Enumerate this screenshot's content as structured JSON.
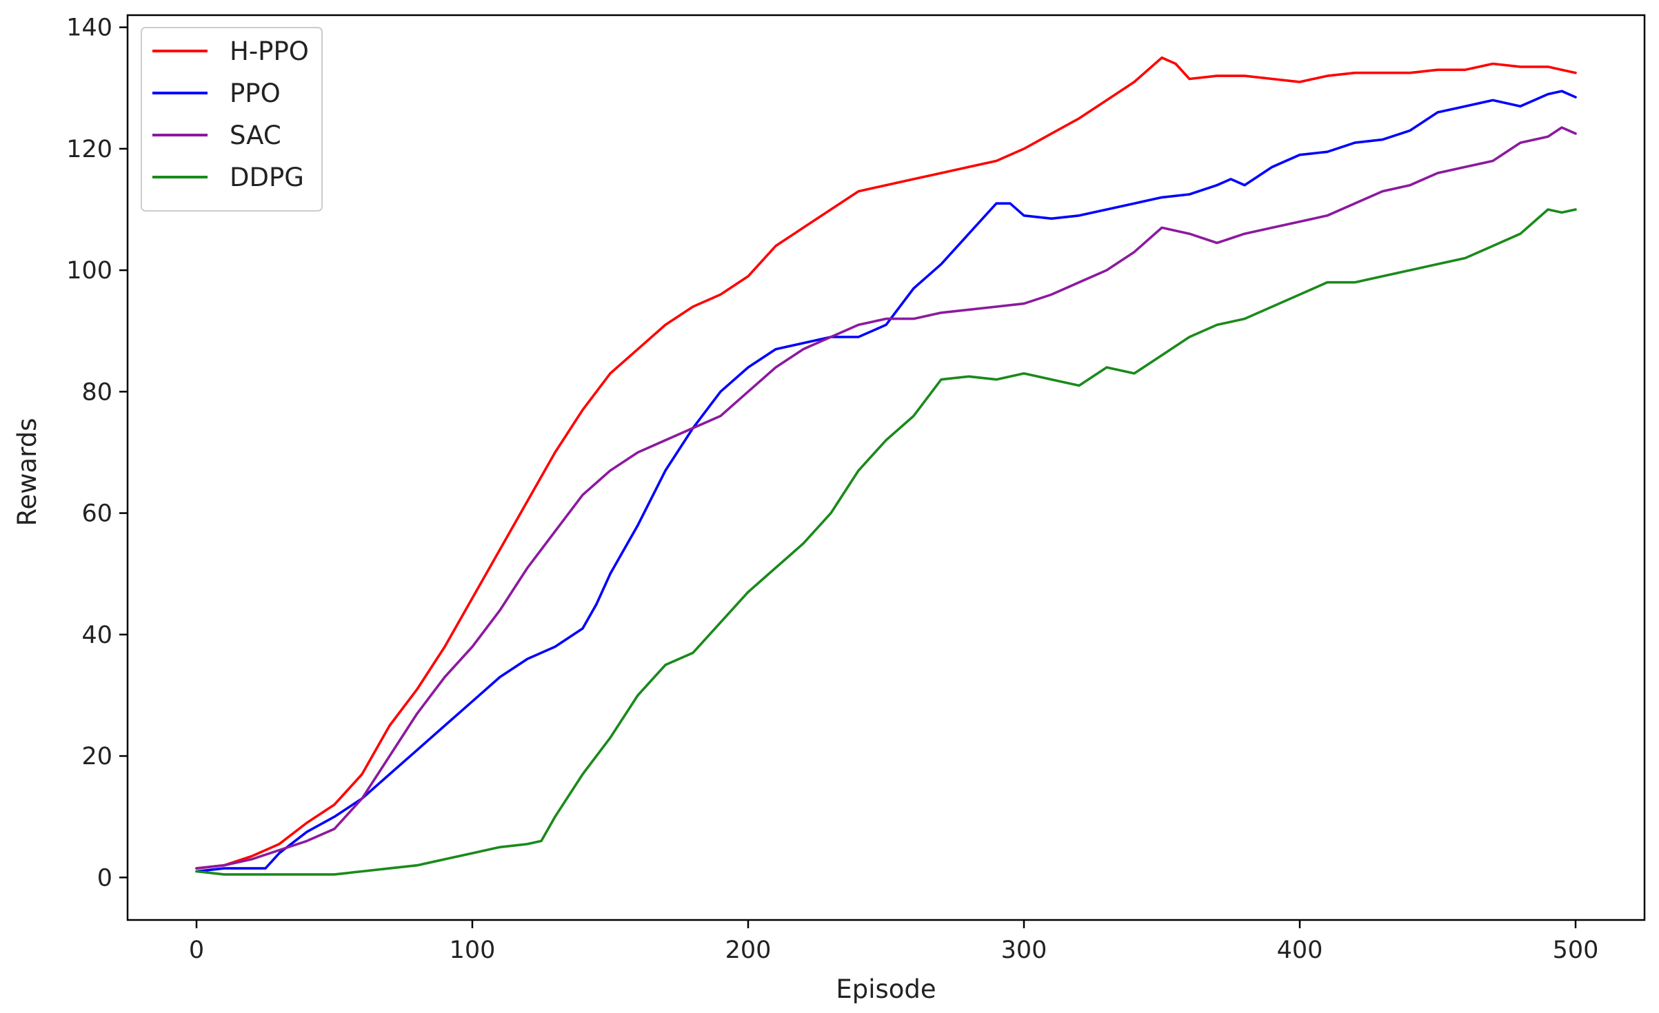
{
  "chart_data": {
    "type": "line",
    "title": "",
    "xlabel": "Episode",
    "ylabel": "Rewards",
    "xlim": [
      -25,
      525
    ],
    "ylim": [
      -7,
      142
    ],
    "xticks": [
      0,
      100,
      200,
      300,
      400,
      500
    ],
    "yticks": [
      0,
      20,
      40,
      60,
      80,
      100,
      120,
      140
    ],
    "grid": false,
    "legend_position": "top-left",
    "series": [
      {
        "name": "H-PPO",
        "color": "#ff0000",
        "x": [
          0,
          10,
          20,
          30,
          40,
          50,
          60,
          70,
          80,
          90,
          100,
          110,
          120,
          130,
          140,
          150,
          160,
          170,
          180,
          190,
          200,
          210,
          220,
          230,
          240,
          250,
          260,
          270,
          280,
          290,
          300,
          310,
          320,
          330,
          340,
          350,
          355,
          360,
          370,
          380,
          390,
          400,
          410,
          420,
          430,
          440,
          450,
          460,
          470,
          480,
          490,
          500
        ],
        "y": [
          1.5,
          2,
          3.5,
          5.5,
          9,
          12,
          17,
          25,
          31,
          38,
          46,
          54,
          62,
          70,
          77,
          83,
          87,
          91,
          94,
          96,
          99,
          104,
          107,
          110,
          113,
          114,
          115,
          116,
          117,
          118,
          120,
          122.5,
          125,
          128,
          131,
          135,
          134,
          131.5,
          132,
          132,
          131.5,
          131,
          132,
          132.5,
          132.5,
          132.5,
          133,
          133,
          134,
          133.5,
          133.5,
          132.5
        ]
      },
      {
        "name": "PPO",
        "color": "#0000ff",
        "x": [
          0,
          10,
          20,
          25,
          30,
          40,
          50,
          60,
          70,
          80,
          90,
          100,
          110,
          120,
          130,
          140,
          145,
          150,
          160,
          170,
          180,
          190,
          200,
          210,
          220,
          230,
          240,
          250,
          260,
          270,
          280,
          290,
          295,
          300,
          310,
          320,
          330,
          340,
          350,
          360,
          370,
          375,
          380,
          390,
          400,
          410,
          420,
          430,
          440,
          450,
          460,
          470,
          480,
          490,
          495,
          500
        ],
        "y": [
          1,
          1.5,
          1.5,
          1.5,
          4,
          7.5,
          10,
          13,
          17,
          21,
          25,
          29,
          33,
          36,
          38,
          41,
          45,
          50,
          58,
          67,
          74,
          80,
          84,
          87,
          88,
          89,
          89,
          91,
          97,
          101,
          106,
          111,
          111,
          109,
          108.5,
          109,
          110,
          111,
          112,
          112.5,
          114,
          115,
          114,
          117,
          119,
          119.5,
          121,
          121.5,
          123,
          126,
          127,
          128,
          127,
          129,
          129.5,
          128.5
        ]
      },
      {
        "name": "SAC",
        "color": "#8b1a9e",
        "x": [
          0,
          10,
          20,
          30,
          40,
          50,
          60,
          70,
          80,
          90,
          100,
          110,
          120,
          130,
          140,
          150,
          160,
          170,
          180,
          190,
          200,
          210,
          220,
          230,
          240,
          250,
          260,
          270,
          280,
          290,
          300,
          310,
          320,
          330,
          340,
          350,
          360,
          370,
          380,
          390,
          400,
          410,
          420,
          430,
          440,
          450,
          460,
          470,
          480,
          490,
          495,
          500
        ],
        "y": [
          1.5,
          2,
          3,
          4.5,
          6,
          8,
          13,
          20,
          27,
          33,
          38,
          44,
          51,
          57,
          63,
          67,
          70,
          72,
          74,
          76,
          80,
          84,
          87,
          89,
          91,
          92,
          92,
          93,
          93.5,
          94,
          94.5,
          96,
          98,
          100,
          103,
          107,
          106,
          104.5,
          106,
          107,
          108,
          109,
          111,
          113,
          114,
          116,
          117,
          118,
          121,
          122,
          123.5,
          122.5
        ]
      },
      {
        "name": "DDPG",
        "color": "#1a8a1a",
        "x": [
          0,
          10,
          20,
          30,
          40,
          50,
          60,
          70,
          80,
          90,
          100,
          110,
          120,
          125,
          130,
          140,
          150,
          160,
          170,
          180,
          190,
          200,
          210,
          220,
          230,
          240,
          250,
          260,
          270,
          280,
          290,
          300,
          310,
          320,
          330,
          340,
          350,
          360,
          370,
          380,
          390,
          400,
          410,
          420,
          430,
          440,
          450,
          460,
          470,
          480,
          490,
          495,
          500
        ],
        "y": [
          1,
          0.5,
          0.5,
          0.5,
          0.5,
          0.5,
          1,
          1.5,
          2,
          3,
          4,
          5,
          5.5,
          6,
          10,
          17,
          23,
          30,
          35,
          37,
          42,
          47,
          51,
          55,
          60,
          67,
          72,
          76,
          82,
          82.5,
          82,
          83,
          82,
          81,
          84,
          83,
          86,
          89,
          91,
          92,
          94,
          96,
          98,
          98,
          99,
          100,
          101,
          102,
          104,
          106,
          110,
          109.5,
          110
        ]
      }
    ]
  }
}
